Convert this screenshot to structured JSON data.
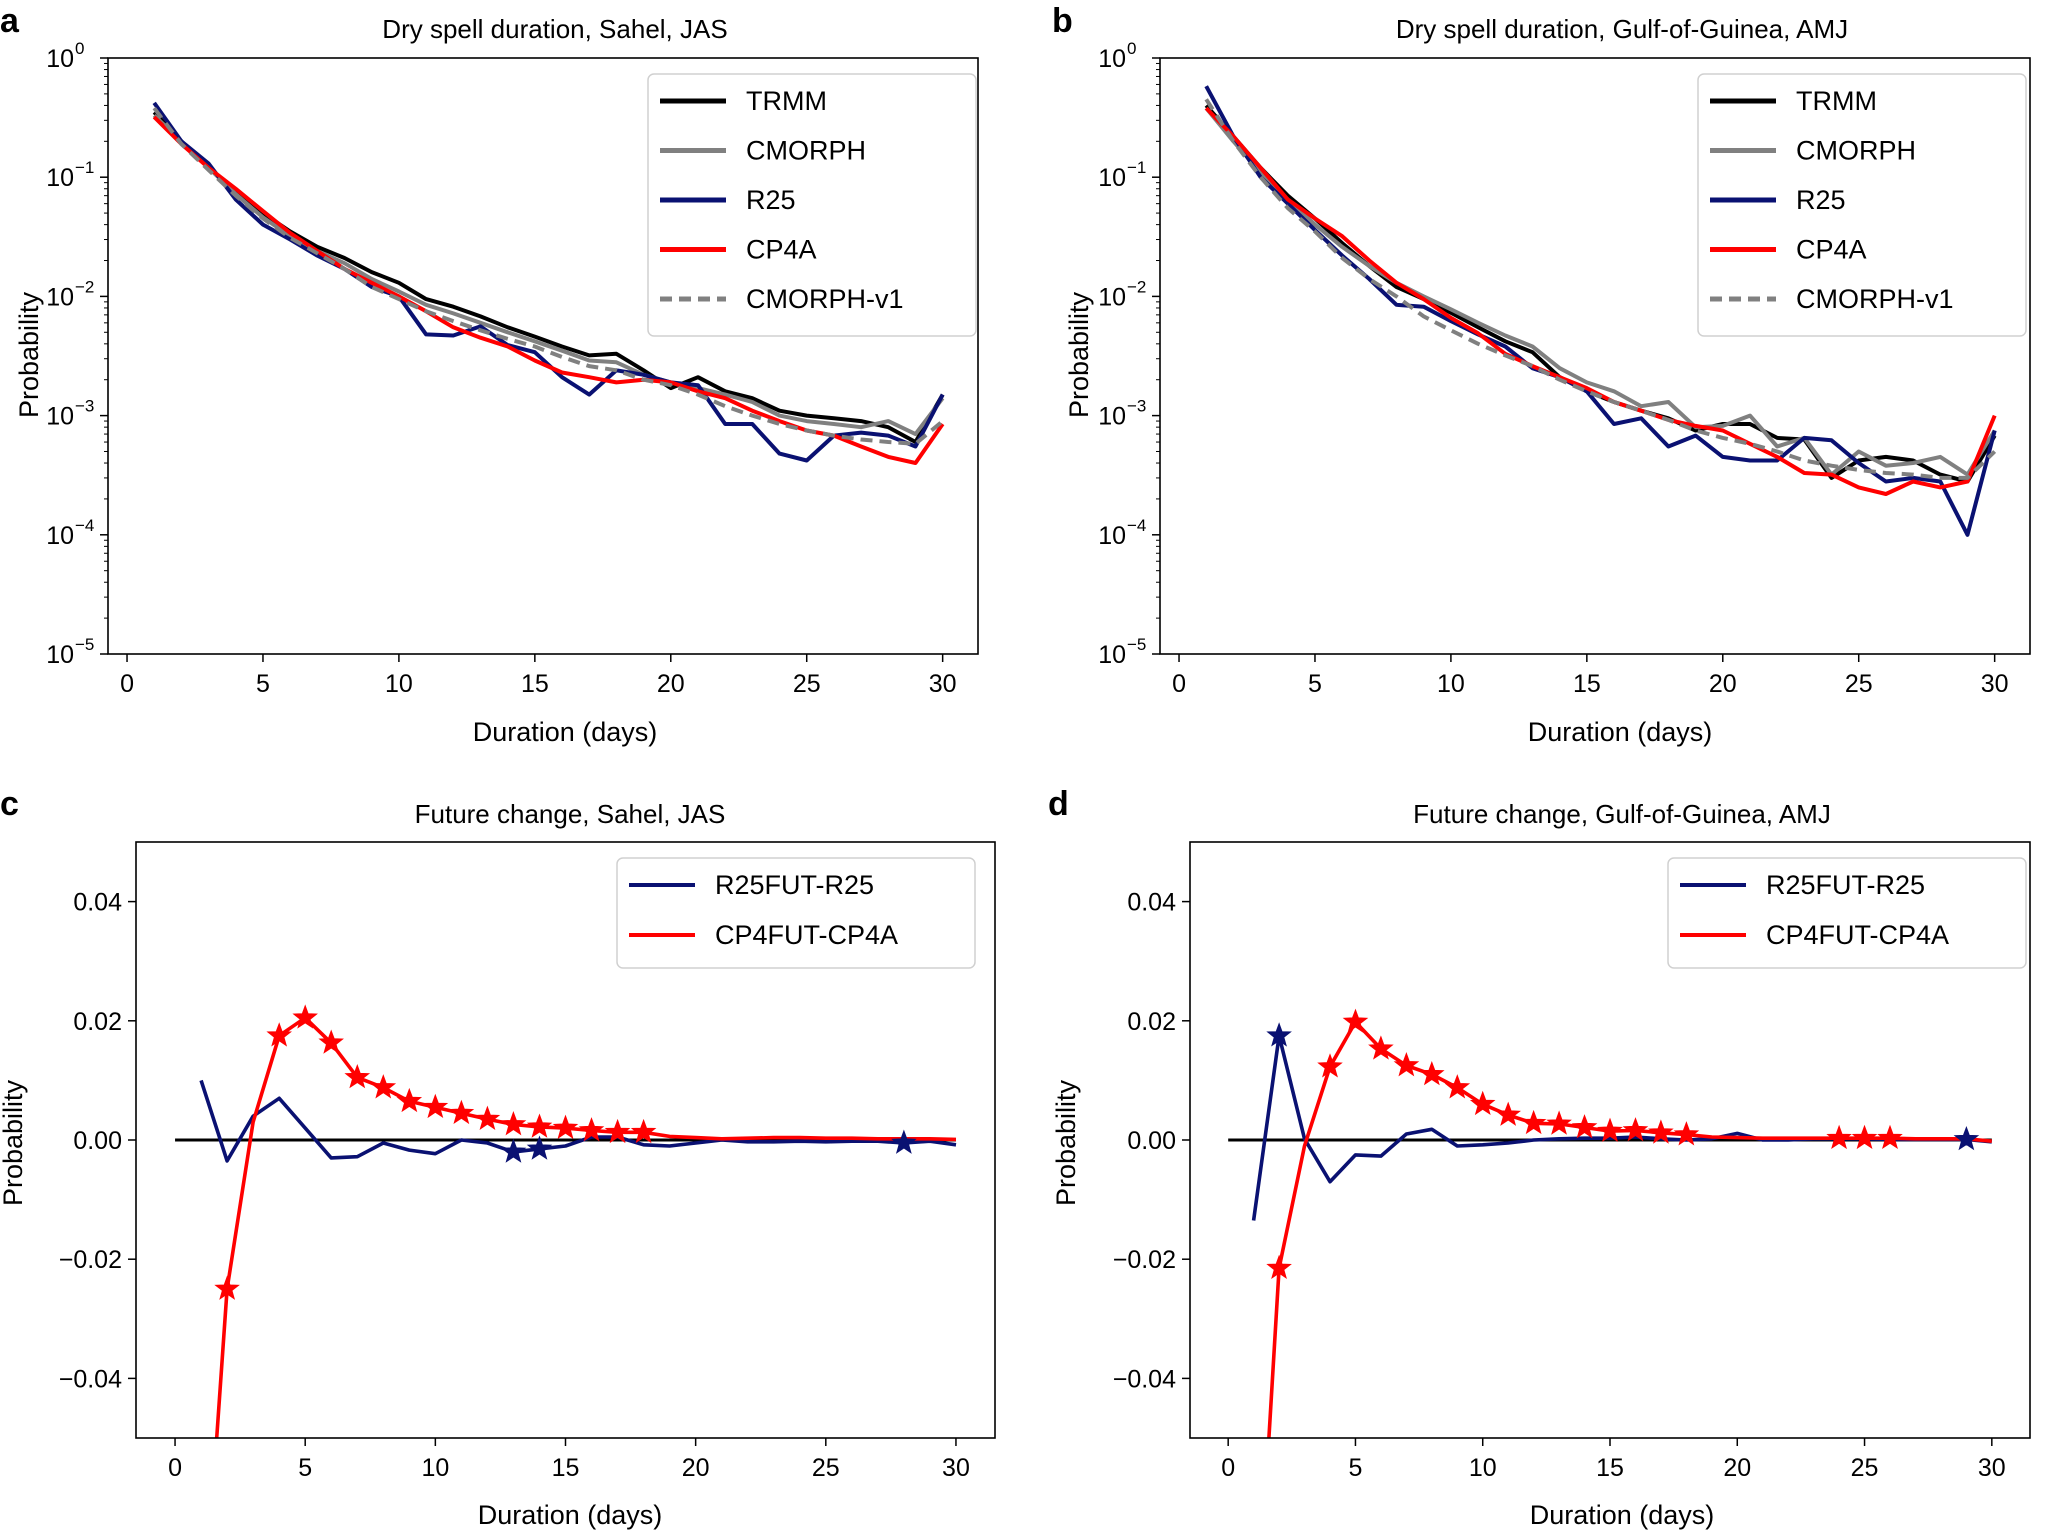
{
  "chart_data": [
    {
      "panel": "a",
      "type": "line",
      "scale_y": "log",
      "title": "Dry spell duration, Sahel, JAS",
      "xlabel": "Duration (days)",
      "ylabel": "Probability",
      "xlim": [
        -0.7,
        31.3
      ],
      "ylim_exp": [
        -5,
        0
      ],
      "xticks": [
        0,
        5,
        10,
        15,
        20,
        25,
        30
      ],
      "yticks_exp": [
        0,
        -1,
        -2,
        -3,
        -4,
        -5
      ],
      "ytick_base": "10",
      "legend_position": "top-right",
      "x": [
        1,
        2,
        3,
        4,
        5,
        6,
        7,
        8,
        9,
        10,
        11,
        12,
        13,
        14,
        15,
        16,
        17,
        18,
        19,
        20,
        21,
        22,
        23,
        24,
        25,
        26,
        27,
        28,
        29,
        30
      ],
      "series": [
        {
          "name": "TRMM",
          "color": "#000000",
          "dash": "",
          "values": [
            0.35,
            0.2,
            0.12,
            0.075,
            0.05,
            0.035,
            0.026,
            0.021,
            0.016,
            0.013,
            0.0095,
            0.0082,
            0.0068,
            0.0055,
            0.0046,
            0.0038,
            0.0032,
            0.0033,
            0.0024,
            0.0017,
            0.0021,
            0.0016,
            0.0014,
            0.0011,
            0.001,
            0.00095,
            0.0009,
            0.0008,
            0.0006,
            0.0015
          ]
        },
        {
          "name": "CMORPH",
          "color": "#808080",
          "dash": "",
          "values": [
            0.33,
            0.2,
            0.12,
            0.072,
            0.046,
            0.032,
            0.024,
            0.019,
            0.014,
            0.011,
            0.0085,
            0.0072,
            0.006,
            0.005,
            0.0042,
            0.0035,
            0.0029,
            0.0028,
            0.0022,
            0.0019,
            0.0017,
            0.0015,
            0.0013,
            0.001,
            0.0009,
            0.00085,
            0.0008,
            0.0009,
            0.0007,
            0.0014
          ]
        },
        {
          "name": "R25",
          "color": "#0a1172",
          "dash": "",
          "values": [
            0.42,
            0.2,
            0.13,
            0.065,
            0.04,
            0.03,
            0.022,
            0.017,
            0.012,
            0.01,
            0.0048,
            0.0047,
            0.0056,
            0.0039,
            0.0034,
            0.0021,
            0.0015,
            0.0024,
            0.0022,
            0.0019,
            0.0018,
            0.00085,
            0.00085,
            0.00048,
            0.00042,
            0.00068,
            0.00072,
            0.00068,
            0.00055,
            0.0015
          ]
        },
        {
          "name": "CP4A",
          "color": "#ff0000",
          "dash": "",
          "values": [
            0.32,
            0.19,
            0.12,
            0.08,
            0.052,
            0.034,
            0.024,
            0.017,
            0.013,
            0.01,
            0.0075,
            0.0055,
            0.0045,
            0.0038,
            0.0029,
            0.0023,
            0.0021,
            0.0019,
            0.002,
            0.0019,
            0.0016,
            0.0014,
            0.0011,
            0.0009,
            0.00075,
            0.00068,
            0.00055,
            0.00045,
            0.0004,
            0.00085
          ]
        },
        {
          "name": "CMORPH-v1",
          "color": "#808080",
          "dash": "12,7",
          "values": [
            0.38,
            0.19,
            0.115,
            0.07,
            0.045,
            0.031,
            0.023,
            0.017,
            0.012,
            0.0095,
            0.0075,
            0.0062,
            0.0052,
            0.0044,
            0.0038,
            0.0031,
            0.0026,
            0.0024,
            0.002,
            0.0018,
            0.0015,
            0.0012,
            0.001,
            0.00085,
            0.00075,
            0.00068,
            0.00063,
            0.0006,
            0.00058,
            0.0009
          ]
        }
      ]
    },
    {
      "panel": "b",
      "type": "line",
      "scale_y": "log",
      "title": "Dry spell duration, Gulf-of-Guinea, AMJ",
      "xlabel": "Duration (days)",
      "ylabel": "Probability",
      "xlim": [
        -0.7,
        31.3
      ],
      "ylim_exp": [
        -5,
        0
      ],
      "xticks": [
        0,
        5,
        10,
        15,
        20,
        25,
        30
      ],
      "yticks_exp": [
        0,
        -1,
        -2,
        -3,
        -4,
        -5
      ],
      "ytick_base": "10",
      "legend_position": "top-right",
      "x": [
        1,
        2,
        3,
        4,
        5,
        6,
        7,
        8,
        9,
        10,
        11,
        12,
        13,
        14,
        15,
        16,
        17,
        18,
        19,
        20,
        21,
        22,
        23,
        24,
        25,
        26,
        27,
        28,
        29,
        30
      ],
      "series": [
        {
          "name": "TRMM",
          "color": "#000000",
          "dash": "",
          "values": [
            0.4,
            0.22,
            0.12,
            0.07,
            0.045,
            0.028,
            0.018,
            0.012,
            0.0095,
            0.0073,
            0.0055,
            0.0042,
            0.0034,
            0.0021,
            0.0016,
            0.0013,
            0.0011,
            0.00095,
            0.00075,
            0.00085,
            0.00085,
            0.00065,
            0.00063,
            0.0003,
            0.00042,
            0.00045,
            0.00042,
            0.00032,
            0.00028,
            0.00068
          ]
        },
        {
          "name": "CMORPH",
          "color": "#808080",
          "dash": "",
          "values": [
            0.38,
            0.2,
            0.11,
            0.065,
            0.04,
            0.026,
            0.018,
            0.013,
            0.01,
            0.0078,
            0.006,
            0.0047,
            0.0038,
            0.0025,
            0.0019,
            0.0016,
            0.0012,
            0.0013,
            0.0008,
            0.00082,
            0.001,
            0.00055,
            0.00065,
            0.00032,
            0.0005,
            0.00038,
            0.0004,
            0.00045,
            0.00032,
            0.00075
          ]
        },
        {
          "name": "R25",
          "color": "#0a1172",
          "dash": "",
          "values": [
            0.58,
            0.22,
            0.1,
            0.06,
            0.036,
            0.022,
            0.014,
            0.0085,
            0.0082,
            0.0062,
            0.0048,
            0.0038,
            0.0025,
            0.0021,
            0.0016,
            0.00085,
            0.00095,
            0.00055,
            0.00068,
            0.00045,
            0.00042,
            0.00042,
            0.00065,
            0.00062,
            0.0004,
            0.00028,
            0.0003,
            0.00028,
            0.0001,
            0.00075
          ]
        },
        {
          "name": "CP4A",
          "color": "#ff0000",
          "dash": "",
          "values": [
            0.38,
            0.22,
            0.12,
            0.065,
            0.045,
            0.032,
            0.02,
            0.013,
            0.0095,
            0.0066,
            0.0049,
            0.0033,
            0.0026,
            0.0021,
            0.0017,
            0.0013,
            0.0011,
            0.00092,
            0.00082,
            0.00075,
            0.00058,
            0.00045,
            0.00033,
            0.00032,
            0.00025,
            0.00022,
            0.00028,
            0.00025,
            0.00028,
            0.001
          ]
        },
        {
          "name": "CMORPH-v1",
          "color": "#808080",
          "dash": "12,7",
          "values": [
            0.45,
            0.2,
            0.1,
            0.055,
            0.035,
            0.021,
            0.014,
            0.01,
            0.0068,
            0.0052,
            0.004,
            0.0032,
            0.0026,
            0.002,
            0.0016,
            0.0013,
            0.0011,
            0.00092,
            0.00075,
            0.00065,
            0.00058,
            0.0005,
            0.00042,
            0.00038,
            0.00035,
            0.00033,
            0.00032,
            0.0003,
            0.0003,
            0.0005
          ]
        }
      ]
    },
    {
      "panel": "c",
      "type": "line",
      "scale_y": "linear",
      "title": "Future change, Sahel, JAS",
      "xlabel": "Duration (days)",
      "ylabel": "Probability",
      "xlim": [
        -1.5,
        31.5
      ],
      "ylim": [
        -0.05,
        0.05
      ],
      "xticks": [
        0,
        5,
        10,
        15,
        20,
        25,
        30
      ],
      "yticks": [
        0.04,
        0.02,
        0.0,
        -0.02,
        -0.04
      ],
      "ytick_labels": [
        "0.04",
        "0.02",
        "0.00",
        "−0.02",
        "−0.04"
      ],
      "legend_position": "top-right",
      "zero_line": true,
      "series": [
        {
          "name": "R25FUT-R25",
          "color": "#0a1172",
          "x": [
            1,
            2,
            3,
            4,
            5,
            6,
            7,
            8,
            9,
            10,
            11,
            12,
            13,
            14,
            15,
            16,
            17,
            18,
            19,
            20,
            21,
            22,
            23,
            24,
            25,
            26,
            27,
            28,
            29,
            30
          ],
          "values": [
            0.01,
            -0.0035,
            0.004,
            0.007,
            0.002,
            -0.003,
            -0.0028,
            -0.0005,
            -0.0017,
            -0.0023,
            0.0,
            -0.0005,
            -0.002,
            -0.0015,
            -0.001,
            0.0005,
            0.0005,
            -0.0008,
            -0.001,
            -0.0005,
            0.0,
            -0.0003,
            -0.0003,
            -0.0002,
            -0.0003,
            -0.0002,
            -0.0002,
            -0.0005,
            -0.0002,
            -0.0008
          ],
          "stars_x": [
            13,
            14,
            28
          ]
        },
        {
          "name": "CP4FUT-CP4A",
          "color": "#ff0000",
          "x": [
            1.6,
            2,
            3,
            4,
            5,
            6,
            7,
            8,
            9,
            10,
            11,
            12,
            13,
            14,
            15,
            16,
            17,
            18,
            19,
            20,
            21,
            22,
            23,
            24,
            25,
            26,
            27,
            28,
            29,
            30
          ],
          "values": [
            -0.05,
            -0.025,
            0.003,
            0.0175,
            0.0205,
            0.0163,
            0.0105,
            0.0088,
            0.0065,
            0.0055,
            0.0045,
            0.0035,
            0.0026,
            0.0022,
            0.002,
            0.0016,
            0.0013,
            0.0013,
            0.0006,
            0.0004,
            0.0002,
            0.0003,
            0.0004,
            0.0004,
            0.0003,
            0.0003,
            0.0002,
            0.0002,
            0.0002,
            0.0001
          ],
          "stars_x": [
            2,
            4,
            5,
            6,
            7,
            8,
            9,
            10,
            11,
            12,
            13,
            14,
            15,
            16,
            17,
            18
          ]
        }
      ]
    },
    {
      "panel": "d",
      "type": "line",
      "scale_y": "linear",
      "title": "Future change, Gulf-of-Guinea, AMJ",
      "xlabel": "Duration (days)",
      "ylabel": "Probability",
      "xlim": [
        -1.5,
        31.5
      ],
      "ylim": [
        -0.05,
        0.05
      ],
      "xticks": [
        0,
        5,
        10,
        15,
        20,
        25,
        30
      ],
      "yticks": [
        0.04,
        0.02,
        0.0,
        -0.02,
        -0.04
      ],
      "ytick_labels": [
        "0.04",
        "0.02",
        "0.00",
        "−0.02",
        "−0.04"
      ],
      "legend_position": "top-right",
      "zero_line": true,
      "series": [
        {
          "name": "R25FUT-R25",
          "color": "#0a1172",
          "x": [
            1,
            2,
            3,
            4,
            5,
            6,
            7,
            8,
            9,
            10,
            11,
            12,
            13,
            14,
            15,
            16,
            17,
            18,
            19,
            20,
            21,
            22,
            23,
            24,
            25,
            26,
            27,
            28,
            29,
            30
          ],
          "values": [
            -0.0135,
            0.0175,
            0.0002,
            -0.007,
            -0.0025,
            -0.0027,
            0.001,
            0.0018,
            -0.001,
            -0.0008,
            -0.0005,
            0.0,
            0.0002,
            0.0003,
            0.0003,
            0.0005,
            0.0002,
            0.0,
            0.0002,
            0.0011,
            0.0,
            0.0,
            0.0002,
            0.0002,
            0.0002,
            0.0001,
            0.0001,
            0.0001,
            0.0001,
            -0.0003
          ],
          "stars_x": [
            2,
            29
          ]
        },
        {
          "name": "CP4FUT-CP4A",
          "color": "#ff0000",
          "x": [
            1.6,
            2,
            3,
            4,
            5,
            6,
            7,
            8,
            9,
            10,
            11,
            12,
            13,
            14,
            15,
            16,
            17,
            18,
            19,
            20,
            21,
            22,
            23,
            24,
            25,
            26,
            27,
            28,
            29,
            30
          ],
          "values": [
            -0.05,
            -0.0215,
            -0.001,
            0.0123,
            0.0198,
            0.0153,
            0.0125,
            0.011,
            0.0088,
            0.006,
            0.0042,
            0.0028,
            0.0027,
            0.0021,
            0.0015,
            0.0016,
            0.0012,
            0.0009,
            0.0005,
            0.0004,
            0.0003,
            0.0003,
            0.0003,
            0.0003,
            0.0003,
            0.0003,
            0.0002,
            0.0002,
            0.0002,
            -0.0002
          ],
          "stars_x": [
            2,
            4,
            5,
            6,
            7,
            8,
            9,
            10,
            11,
            12,
            13,
            14,
            15,
            16,
            17,
            18,
            24,
            25,
            26
          ]
        }
      ]
    }
  ]
}
